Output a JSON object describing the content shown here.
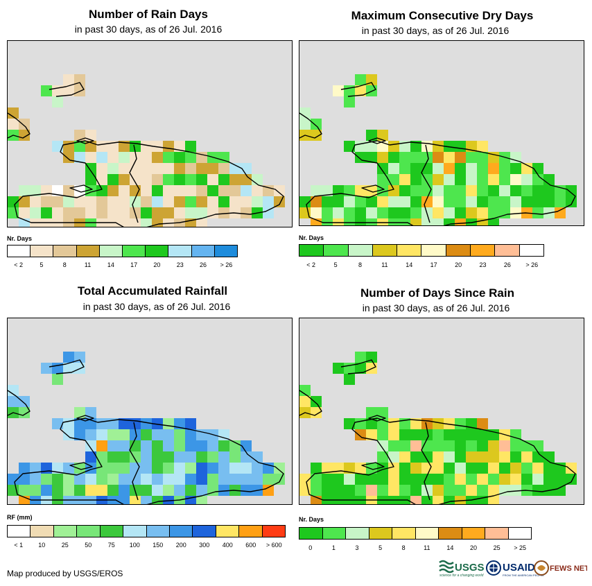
{
  "panels": [
    {
      "title": "Number of Rain Days",
      "subtitle": "in past 30 days, as of 26 Jul. 2016",
      "legend_label": "Nr. Days",
      "legend_colors": [
        "#ffffff",
        "#f5e3c9",
        "#e3c898",
        "#cda434",
        "#c8f5c8",
        "#4ee64e",
        "#1ec81e",
        "#b4e6f5",
        "#64b4f0",
        "#1e8cdc"
      ],
      "tick_labels": [
        "< 2",
        "5",
        "8",
        "11",
        "14",
        "17",
        "20",
        "23",
        "26",
        "> 26"
      ],
      "fill_colors": [
        "#f5e3c9",
        "#e3c898",
        "#cda434",
        "#4ee64e",
        "#1ec81e",
        "#c8f5c8",
        "#b4e6f5",
        "#ffffff"
      ],
      "fill_weights": [
        30,
        20,
        15,
        12,
        12,
        6,
        4,
        1
      ]
    },
    {
      "title": "Maximum Consecutive Dry Days",
      "subtitle": "in past 30 days, as of 26 Jul. 2016",
      "legend_label": "Nr. Days",
      "legend_colors": [
        "#1ec81e",
        "#4ee64e",
        "#c8f5c8",
        "#dcc81e",
        "#ffe664",
        "#fffac8",
        "#dc8c14",
        "#ffaa1e",
        "#ffbe96",
        "#ffffff"
      ],
      "tick_labels": [
        "< 2",
        "5",
        "8",
        "11",
        "14",
        "17",
        "20",
        "23",
        "26",
        "> 26"
      ],
      "fill_colors": [
        "#1ec81e",
        "#4ee64e",
        "#c8f5c8",
        "#dcc81e",
        "#ffe664",
        "#fffac8",
        "#dc8c14",
        "#ffaa1e"
      ],
      "fill_weights": [
        25,
        25,
        15,
        14,
        9,
        6,
        3,
        3
      ]
    },
    {
      "title": "Total Accumulated Rainfall",
      "subtitle": "in past 30 days, as of 26 Jul. 2016",
      "legend_label": "RF (mm)",
      "legend_colors": [
        "#ffffff",
        "#f0dcb4",
        "#a0f096",
        "#78e678",
        "#3cc83c",
        "#b4e6f5",
        "#78bef0",
        "#3c96e6",
        "#1e64dc",
        "#ffe664",
        "#ffa014",
        "#ff3c14"
      ],
      "tick_labels": [
        "< 1",
        "10",
        "25",
        "50",
        "75",
        "100",
        "150",
        "200",
        "300",
        "400",
        "600",
        "> 600"
      ],
      "fill_colors": [
        "#78bef0",
        "#3c96e6",
        "#b4e6f5",
        "#78e678",
        "#3cc83c",
        "#a0f096",
        "#1e64dc",
        "#ffe664",
        "#ffa014"
      ],
      "fill_weights": [
        25,
        20,
        15,
        12,
        10,
        8,
        6,
        2,
        2
      ]
    },
    {
      "title": "Number of Days Since Rain",
      "subtitle": "in past 30 days, as of 26 Jul. 2016",
      "legend_label": "Nr. Days",
      "legend_colors": [
        "#1ec81e",
        "#4ee64e",
        "#c8f5c8",
        "#dcc81e",
        "#ffe664",
        "#fffac8",
        "#dc8c14",
        "#ffaa1e",
        "#ffbe96",
        "#ffffff"
      ],
      "tick_labels": [
        "0",
        "1",
        "3",
        "5",
        "8",
        "11",
        "14",
        "20",
        "25",
        "> 25"
      ],
      "fill_colors": [
        "#1ec81e",
        "#4ee64e",
        "#ffe664",
        "#dcc81e",
        "#c8f5c8",
        "#ffbe96",
        "#dc8c14"
      ],
      "fill_weights": [
        40,
        25,
        15,
        10,
        5,
        3,
        2
      ]
    }
  ],
  "credit": "Map produced by USGS/EROS",
  "logos": {
    "usgs": "USGS",
    "usgs_tagline": "science for a changing world",
    "usaid": "USAID",
    "usaid_tagline": "FROM THE AMERICAN PEOPLE",
    "fewsnet": "FEWS NET"
  }
}
